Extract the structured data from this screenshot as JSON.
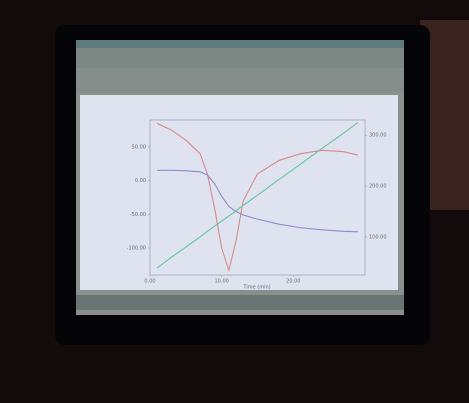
{
  "chart_data": {
    "type": "line",
    "x_label": "Time (min)",
    "x": [
      1,
      3,
      5,
      7,
      8,
      9,
      10,
      11,
      12,
      13,
      15,
      18,
      21,
      24,
      27,
      29
    ],
    "xlim": [
      0,
      30
    ],
    "xticks": [
      {
        "value": 0,
        "label": "0.00"
      },
      {
        "value": 10,
        "label": "10.00"
      },
      {
        "value": 20,
        "label": "20.00"
      }
    ],
    "ylim": [
      -140,
      90
    ],
    "yticks": [
      {
        "value": 50,
        "label": "50.00"
      },
      {
        "value": 0,
        "label": "0.00"
      },
      {
        "value": -50,
        "label": "-50.00"
      },
      {
        "value": -100,
        "label": "-100.00"
      }
    ],
    "y2lim": [
      25,
      330
    ],
    "y2ticks": [
      {
        "value": 100,
        "label": "100.00"
      },
      {
        "value": 200,
        "label": "200.00"
      },
      {
        "value": 300,
        "label": "300.00"
      }
    ],
    "series": [
      {
        "color": "#d88a8a",
        "values": [
          85,
          75,
          60,
          40,
          10,
          -40,
          -100,
          -133,
          -90,
          -30,
          10,
          30,
          40,
          45,
          43,
          38
        ]
      },
      {
        "color": "#63c79a",
        "axis": "y2",
        "values": [
          39,
          60,
          80,
          100,
          111,
          121,
          131,
          141,
          151,
          162,
          182,
          213,
          243,
          274,
          304,
          325
        ]
      },
      {
        "color": "#8a8ad0",
        "axis": "y2",
        "values": [
          231,
          231,
          230,
          228,
          222,
          205,
          180,
          160,
          150,
          143,
          135,
          125,
          118,
          114,
          111,
          110
        ]
      }
    ]
  }
}
